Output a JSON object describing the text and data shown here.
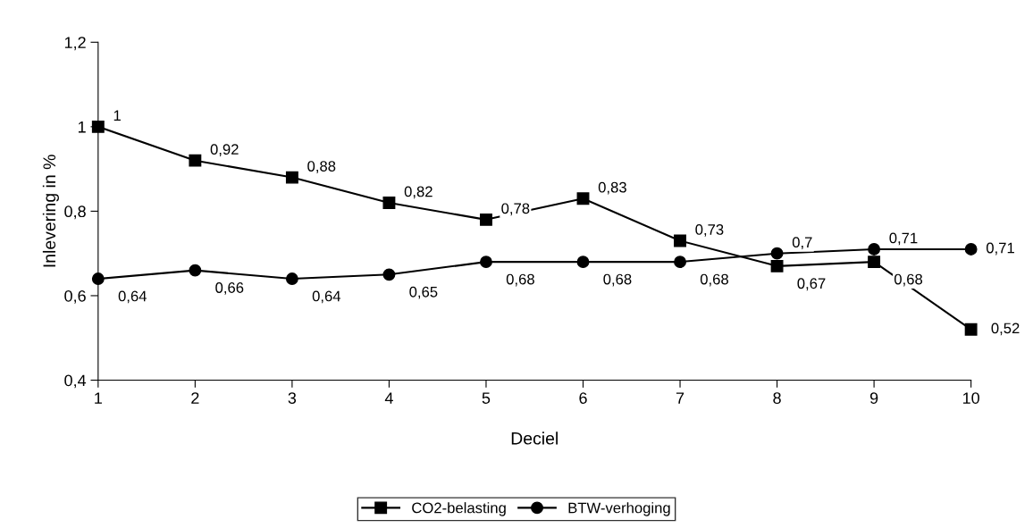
{
  "chart_data": {
    "type": "line",
    "xlabel": "Deciel",
    "ylabel": "Inlevering in %",
    "categories": [
      "1",
      "2",
      "3",
      "4",
      "5",
      "6",
      "7",
      "8",
      "9",
      "10"
    ],
    "ylim": [
      0.4,
      1.2
    ],
    "yticks": [
      {
        "value": 0.4,
        "label": "0,4"
      },
      {
        "value": 0.6,
        "label": "0,6"
      },
      {
        "value": 0.8,
        "label": "0,8"
      },
      {
        "value": 1,
        "label": "1"
      },
      {
        "value": 1.2,
        "label": "1,2"
      }
    ],
    "grid": false,
    "legend": "bottom",
    "line_style": "solid",
    "series": [
      {
        "name": "CO2-belasting",
        "color": "#000000",
        "marker": "square",
        "values": [
          1,
          0.92,
          0.88,
          0.82,
          0.78,
          0.83,
          0.73,
          0.67,
          0.68,
          0.52
        ],
        "value_labels": [
          "1",
          "0,92",
          "0,88",
          "0,82",
          "0,78",
          "0,83",
          "0,73",
          "0,67",
          "0,68",
          "0,52"
        ]
      },
      {
        "name": "BTW-verhoging",
        "color": "#000000",
        "marker": "circle",
        "values": [
          0.64,
          0.66,
          0.64,
          0.65,
          0.68,
          0.68,
          0.68,
          0.7,
          0.71,
          0.71
        ],
        "value_labels": [
          "0,64",
          "0,66",
          "0,64",
          "0,65",
          "0,68",
          "0,68",
          "0,68",
          "0,7",
          "0,71",
          "0,71"
        ]
      }
    ]
  }
}
